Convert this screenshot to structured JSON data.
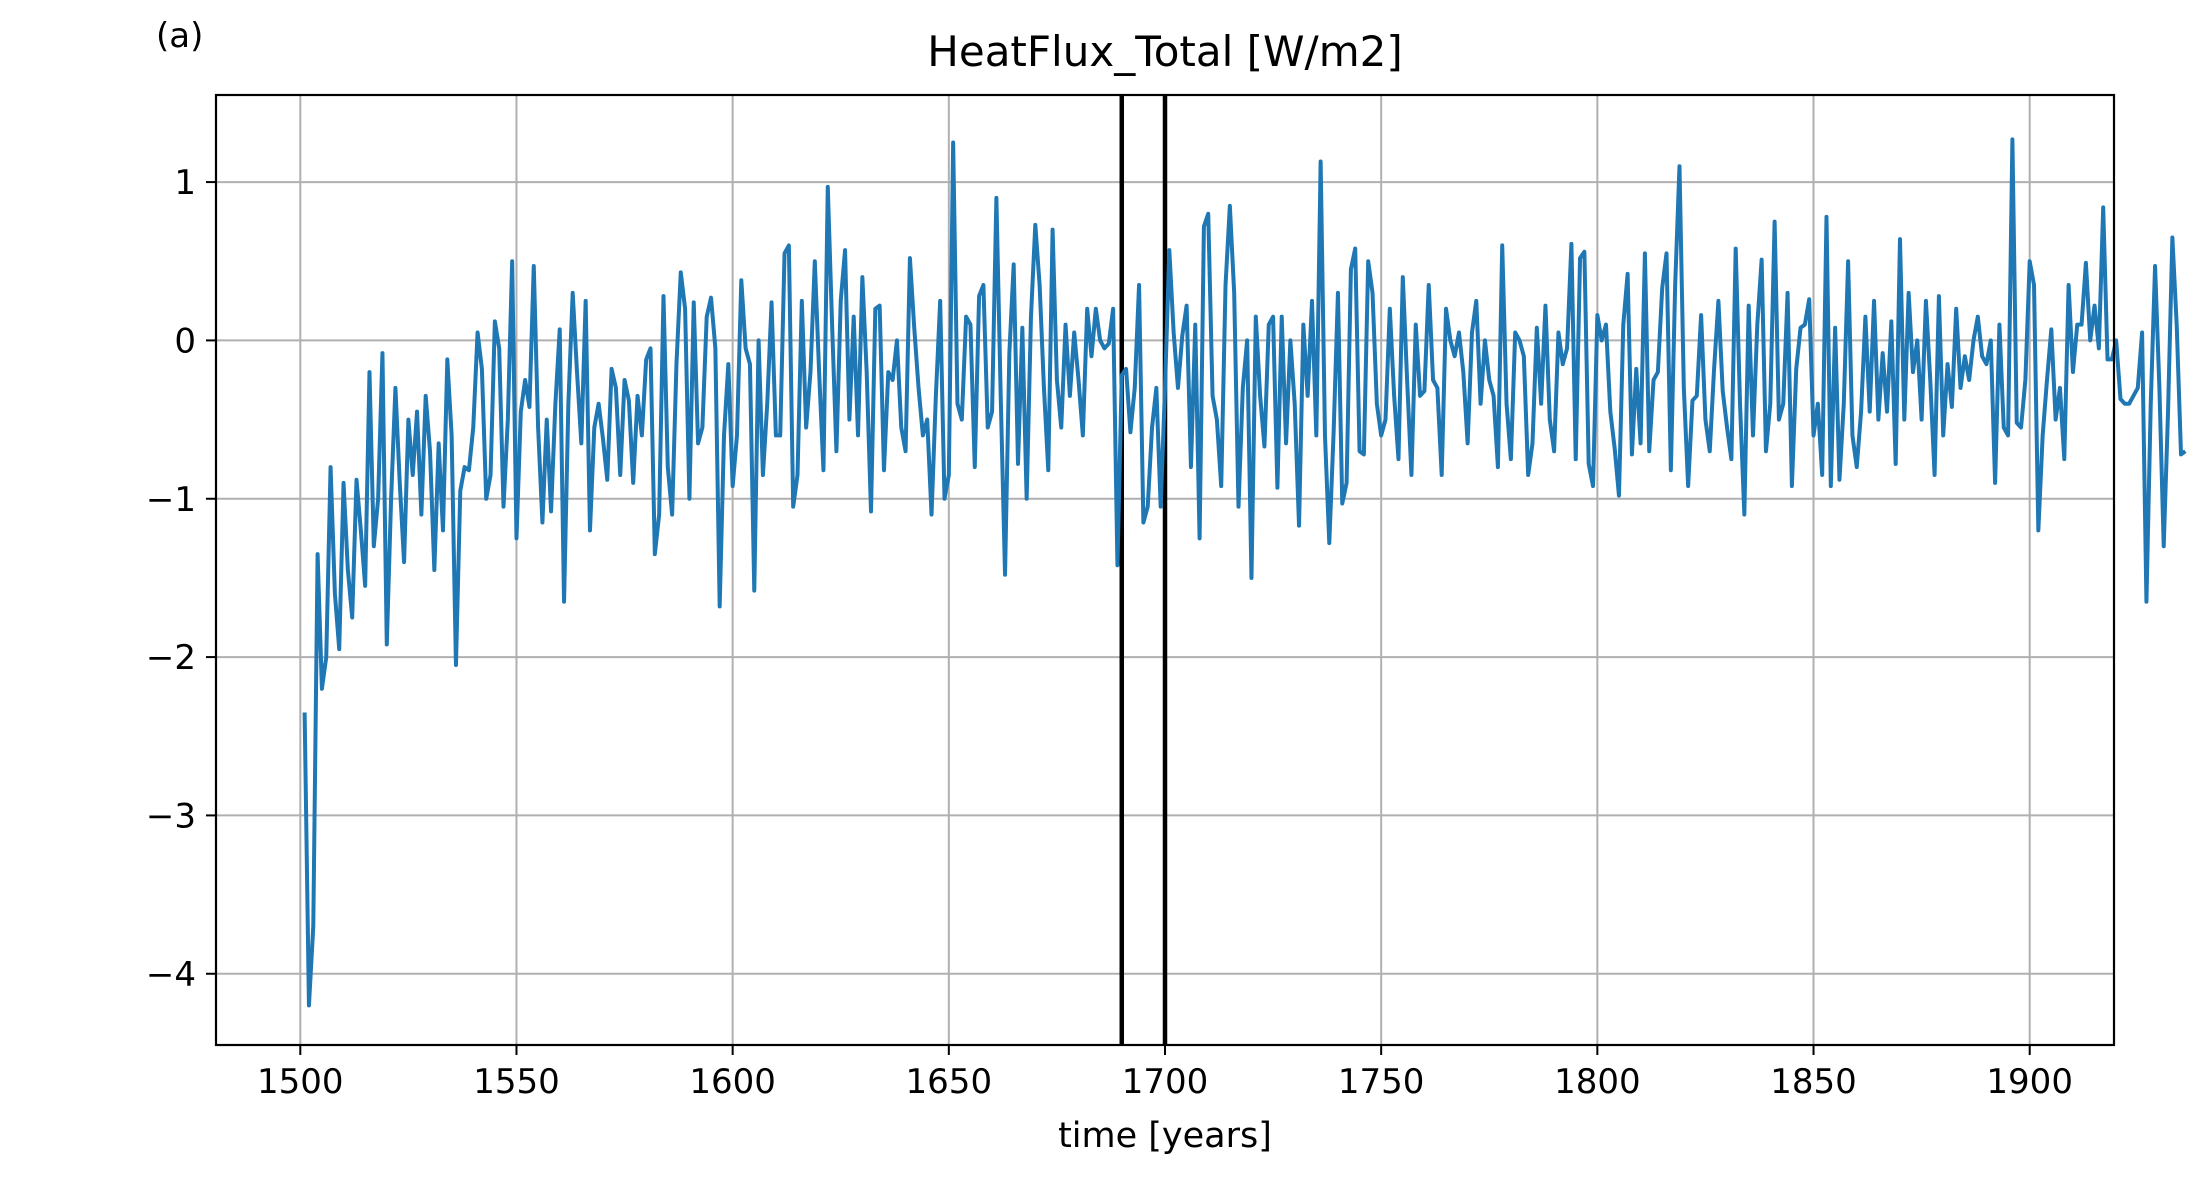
{
  "panel_label": "(a)",
  "chart_data": {
    "type": "line",
    "title": "HeatFlux_Total [W/m2]",
    "xlabel": "time [years]",
    "ylabel": "",
    "xlim": [
      1480.5,
      1919.5
    ],
    "ylim": [
      -4.45,
      1.55
    ],
    "xticks": [
      1500,
      1550,
      1600,
      1650,
      1700,
      1750,
      1800,
      1850,
      1900
    ],
    "xtick_labels": [
      "1500",
      "1550",
      "1600",
      "1650",
      "1700",
      "1750",
      "1800",
      "1850",
      "1900"
    ],
    "yticks": [
      1,
      0,
      -1,
      -2,
      -3,
      -4
    ],
    "ytick_labels": [
      "1",
      "0",
      "−1",
      "−2",
      "−3",
      "−4"
    ],
    "grid": true,
    "series_color": "#1f77b4",
    "vertical_lines": [
      1690,
      1700
    ],
    "vertical_line_color": "#000000",
    "series": [
      {
        "x_start": 1501,
        "x_step": 1,
        "values": [
          -2.35,
          -4.2,
          -3.7,
          -1.35,
          -2.2,
          -2.0,
          -0.8,
          -1.6,
          -1.95,
          -0.9,
          -1.45,
          -1.75,
          -0.88,
          -1.2,
          -1.55,
          -0.2,
          -1.3,
          -1.0,
          -0.08,
          -1.92,
          -1.0,
          -0.3,
          -0.9,
          -1.4,
          -0.5,
          -0.85,
          -0.45,
          -1.1,
          -0.35,
          -0.7,
          -1.45,
          -0.65,
          -1.2,
          -0.12,
          -0.6,
          -2.05,
          -0.95,
          -0.8,
          -0.82,
          -0.55,
          0.05,
          -0.18,
          -1.0,
          -0.85,
          0.12,
          -0.05,
          -1.05,
          -0.5,
          0.5,
          -1.25,
          -0.45,
          -0.25,
          -0.42,
          0.47,
          -0.55,
          -1.15,
          -0.5,
          -1.08,
          -0.4,
          0.07,
          -1.65,
          -0.4,
          0.3,
          -0.2,
          -0.65,
          0.25,
          -1.2,
          -0.55,
          -0.4,
          -0.62,
          -0.88,
          -0.18,
          -0.3,
          -0.85,
          -0.25,
          -0.38,
          -0.9,
          -0.35,
          -0.6,
          -0.12,
          -0.05,
          -1.35,
          -1.1,
          0.28,
          -0.8,
          -1.1,
          -0.15,
          0.43,
          0.2,
          -1.0,
          0.24,
          -0.65,
          -0.55,
          0.15,
          0.27,
          -0.05,
          -1.68,
          -0.6,
          -0.15,
          -0.92,
          -0.6,
          0.38,
          -0.05,
          -0.15,
          -1.58,
          0.0,
          -0.85,
          -0.4,
          0.24,
          -0.6,
          -0.6,
          0.55,
          0.6,
          -1.05,
          -0.85,
          0.25,
          -0.55,
          -0.2,
          0.5,
          -0.2,
          -0.82,
          0.97,
          0.1,
          -0.7,
          0.25,
          0.57,
          -0.5,
          0.15,
          -0.6,
          0.4,
          -0.2,
          -1.08,
          0.2,
          0.22,
          -0.82,
          -0.2,
          -0.25,
          0.0,
          -0.55,
          -0.7,
          0.52,
          0.08,
          -0.3,
          -0.6,
          -0.5,
          -1.1,
          -0.35,
          0.25,
          -1.0,
          -0.85,
          1.25,
          -0.4,
          -0.5,
          0.15,
          0.1,
          -0.8,
          0.28,
          0.35,
          -0.55,
          -0.45,
          0.9,
          -0.35,
          -1.48,
          -0.08,
          0.48,
          -0.78,
          0.08,
          -1.0,
          0.15,
          0.73,
          0.35,
          -0.3,
          -0.82,
          0.7,
          -0.25,
          -0.55,
          0.1,
          -0.35,
          0.05,
          -0.25,
          -0.6,
          0.2,
          -0.1,
          0.2,
          0.0,
          -0.05,
          -0.02,
          0.2,
          -1.42,
          -0.22,
          -0.18,
          -0.58,
          -0.3,
          0.35,
          -1.15,
          -1.05,
          -0.55,
          -0.3,
          -1.05,
          -0.3,
          0.57,
          0.05,
          -0.3,
          0.03,
          0.22,
          -0.8,
          0.1,
          -1.25,
          0.72,
          0.8,
          -0.35,
          -0.5,
          -0.92,
          0.35,
          0.85,
          0.3,
          -1.05,
          -0.3,
          0.0,
          -1.5,
          0.15,
          -0.35,
          -0.67,
          0.1,
          0.15,
          -0.93,
          0.15,
          -0.65,
          0.0,
          -0.4,
          -1.17,
          0.1,
          -0.35,
          0.25,
          -0.6,
          1.13,
          -0.6,
          -1.28,
          -0.58,
          0.3,
          -1.03,
          -0.9,
          0.45,
          0.58,
          -0.7,
          -0.72,
          0.5,
          0.3,
          -0.4,
          -0.6,
          -0.5,
          0.2,
          -0.35,
          -0.75,
          0.4,
          -0.25,
          -0.85,
          0.1,
          -0.35,
          -0.32,
          0.35,
          -0.25,
          -0.3,
          -0.85,
          0.2,
          0.0,
          -0.1,
          0.05,
          -0.2,
          -0.65,
          0.05,
          0.25,
          -0.4,
          0.0,
          -0.25,
          -0.35,
          -0.8,
          0.6,
          -0.4,
          -0.75,
          0.05,
          0.0,
          -0.1,
          -0.85,
          -0.65,
          0.08,
          -0.4,
          0.22,
          -0.5,
          -0.7,
          0.05,
          -0.15,
          -0.05,
          0.61,
          -0.75,
          0.52,
          0.56,
          -0.78,
          -0.92,
          0.16,
          0.0,
          0.1,
          -0.45,
          -0.68,
          -0.98,
          0.1,
          0.42,
          -0.72,
          -0.18,
          -0.65,
          0.55,
          -0.7,
          -0.25,
          -0.2,
          0.33,
          0.55,
          -0.82,
          0.35,
          1.1,
          -0.3,
          -0.92,
          -0.38,
          -0.35,
          0.16,
          -0.5,
          -0.7,
          -0.18,
          0.25,
          -0.32,
          -0.55,
          -0.75,
          0.58,
          -0.4,
          -1.1,
          0.22,
          -0.6,
          0.1,
          0.51,
          -0.7,
          -0.4,
          0.75,
          -0.5,
          -0.4,
          0.3,
          -0.92,
          -0.18,
          0.08,
          0.1,
          0.26,
          -0.6,
          -0.4,
          -0.85,
          0.78,
          -0.92,
          0.08,
          -0.88,
          -0.4,
          0.5,
          -0.6,
          -0.8,
          -0.45,
          0.15,
          -0.45,
          0.25,
          -0.5,
          -0.08,
          -0.45,
          0.12,
          -0.78,
          0.64,
          -0.5,
          0.3,
          -0.2,
          0.0,
          -0.5,
          0.25,
          -0.25,
          -0.85,
          0.28,
          -0.6,
          -0.15,
          -0.42,
          0.2,
          -0.3,
          -0.1,
          -0.25,
          0.0,
          0.15,
          -0.1,
          -0.15,
          0.0,
          -0.9,
          0.1,
          -0.55,
          -0.6,
          1.27,
          -0.52,
          -0.55,
          -0.25,
          0.5,
          0.35,
          -1.2,
          -0.6,
          -0.25,
          0.07,
          -0.5,
          -0.3,
          -0.75,
          0.35,
          -0.2,
          0.1,
          0.1,
          0.49,
          0.0,
          0.22,
          -0.05,
          0.84,
          -0.12,
          -0.12,
          0.0,
          -0.37,
          -0.4,
          -0.4,
          -0.35,
          -0.3,
          0.05,
          -1.65,
          -0.4,
          0.47,
          -0.3,
          -1.3,
          -0.45,
          0.65,
          0.1,
          -0.72,
          -0.7
        ]
      }
    ]
  }
}
